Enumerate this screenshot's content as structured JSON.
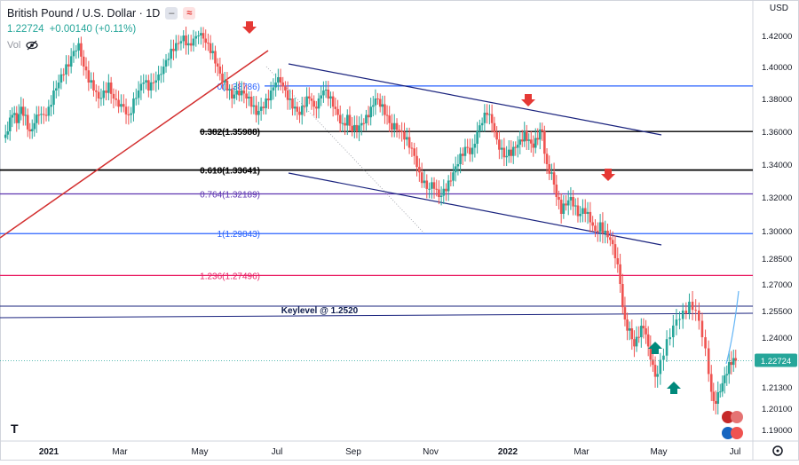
{
  "legend": {
    "symbol": "British Pound / U.S. Dollar · 1D",
    "price": "1.22724",
    "change": "+0.00140 (+0.11%)",
    "vol": "Vol"
  },
  "currency": "USD",
  "colors": {
    "up": "#26a69a",
    "down": "#ef5350",
    "fib0": "#2962ff",
    "fib382": "#000000",
    "fib764": "#5e35b1",
    "fib1236": "#e91e63",
    "keylevel": "#1a237e",
    "trend": "#d32f2f",
    "channel": "#1a237e"
  },
  "chart_data": {
    "type": "candlestick",
    "title": "British Pound / U.S. Dollar · 1D",
    "ylim": [
      1.185,
      1.43
    ],
    "y_ticks": [
      "1.42000",
      "1.40000",
      "1.38000",
      "1.36000",
      "1.34000",
      "1.32000",
      "1.30000",
      "1.28500",
      "1.27000",
      "1.25500",
      "1.24000",
      "1.21300",
      "1.20100",
      "1.19000"
    ],
    "x_ticks": [
      "2021",
      "Mar",
      "May",
      "Jul",
      "Sep",
      "Nov",
      "2022",
      "Mar",
      "May",
      "Jul"
    ],
    "last_price_label": "1.22724",
    "fib_levels": [
      {
        "label": "0(1.38786)",
        "value": 1.38786
      },
      {
        "label": "0.382(1.35988)",
        "value": 1.35988
      },
      {
        "label": "0.618(1.33641)",
        "value": 1.33641
      },
      {
        "label": "0.764(1.32189)",
        "value": 1.32189
      },
      {
        "label": "1(1.29843)",
        "value": 1.29843
      },
      {
        "label": "1.236(1.27496)",
        "value": 1.27496
      }
    ],
    "keylevel": {
      "label": "Keylevel @ 1.2520",
      "value": 1.252
    },
    "series": [
      {
        "month": "Jan21",
        "values": [
          1.36,
          1.37,
          1.365,
          1.375,
          1.37,
          1.36,
          1.365,
          1.37
        ]
      },
      {
        "month": "Feb21",
        "values": [
          1.37,
          1.375,
          1.385,
          1.39,
          1.395,
          1.4,
          1.41,
          1.415
        ]
      },
      {
        "month": "Mar21",
        "values": [
          1.4,
          1.39,
          1.385,
          1.38,
          1.385,
          1.39,
          1.38,
          1.375
        ]
      },
      {
        "month": "Apr21",
        "values": [
          1.375,
          1.37,
          1.38,
          1.385,
          1.39,
          1.385,
          1.39,
          1.395
        ]
      },
      {
        "month": "May21",
        "values": [
          1.4,
          1.405,
          1.41,
          1.415,
          1.42,
          1.415,
          1.418,
          1.42
        ]
      },
      {
        "month": "Jun21",
        "values": [
          1.418,
          1.415,
          1.41,
          1.4,
          1.39,
          1.385,
          1.38,
          1.385
        ]
      },
      {
        "month": "Jul21",
        "values": [
          1.385,
          1.38,
          1.375,
          1.37,
          1.375,
          1.38,
          1.385,
          1.39
        ]
      },
      {
        "month": "Aug21",
        "values": [
          1.39,
          1.385,
          1.38,
          1.375,
          1.37,
          1.375,
          1.38,
          1.375
        ]
      },
      {
        "month": "Sep21",
        "values": [
          1.38,
          1.385,
          1.38,
          1.375,
          1.37,
          1.365,
          1.37,
          1.36
        ]
      },
      {
        "month": "Oct21",
        "values": [
          1.36,
          1.365,
          1.37,
          1.375,
          1.38,
          1.375,
          1.37,
          1.365
        ]
      },
      {
        "month": "Nov21",
        "values": [
          1.365,
          1.36,
          1.355,
          1.35,
          1.345,
          1.335,
          1.33,
          1.325
        ]
      },
      {
        "month": "Dec21",
        "values": [
          1.325,
          1.32,
          1.325,
          1.33,
          1.335,
          1.34,
          1.345,
          1.35
        ]
      },
      {
        "month": "Jan22",
        "values": [
          1.35,
          1.36,
          1.365,
          1.37,
          1.365,
          1.355,
          1.35,
          1.345
        ]
      },
      {
        "month": "Feb22",
        "values": [
          1.345,
          1.35,
          1.355,
          1.36,
          1.355,
          1.35,
          1.355,
          1.36
        ]
      },
      {
        "month": "Mar22",
        "values": [
          1.34,
          1.335,
          1.32,
          1.31,
          1.315,
          1.32,
          1.315,
          1.31
        ]
      },
      {
        "month": "Apr22",
        "values": [
          1.31,
          1.305,
          1.3,
          1.305,
          1.3,
          1.295,
          1.285,
          1.27
        ]
      },
      {
        "month": "May22",
        "values": [
          1.25,
          1.245,
          1.235,
          1.24,
          1.245,
          1.235,
          1.225,
          1.22
        ]
      },
      {
        "month": "Jun22",
        "values": [
          1.23,
          1.24,
          1.25,
          1.255,
          1.26,
          1.255,
          1.24,
          1.22
        ]
      },
      {
        "month": "Jul22",
        "values": [
          1.205,
          1.21,
          1.215,
          1.22,
          1.225,
          1.2272
        ]
      }
    ]
  },
  "toolbar": {
    "logo": "TV",
    "settings_icon": "gear-icon"
  }
}
